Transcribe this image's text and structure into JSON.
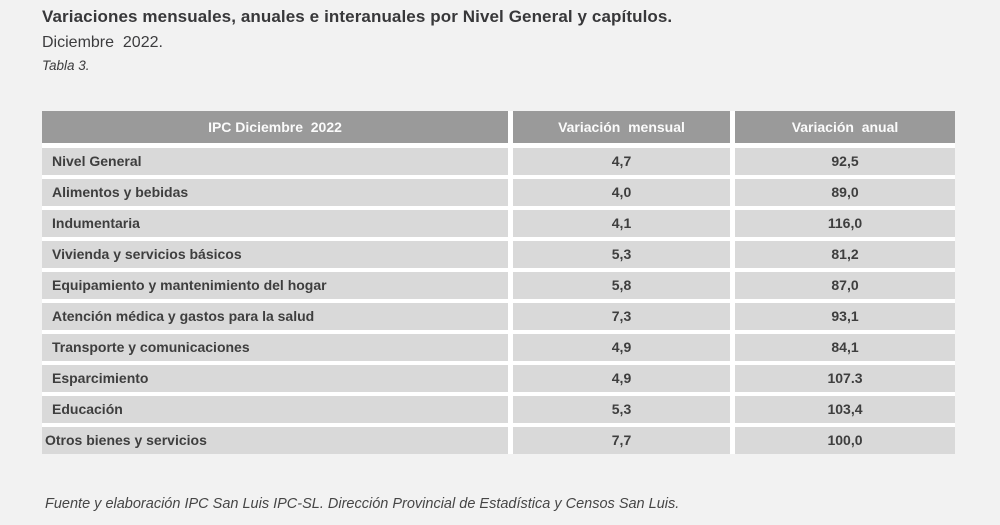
{
  "document": {
    "title": "Variaciones mensuales, anuales e interanuales por Nivel General y capítulos.",
    "subtitle": "Diciembre  2022.",
    "table_caption": "Tabla 3.",
    "source_note": "Fuente y elaboración IPC San Luis IPC-SL. Dirección Provincial de Estadística y Censos San Luis."
  },
  "table": {
    "column_headers": [
      "IPC Diciembre  2022",
      "Variación  mensual",
      "Variación  anual"
    ],
    "rows": [
      {
        "label": "Nivel General",
        "monthly": "4,7",
        "annual": "92,5"
      },
      {
        "label": "Alimentos y bebidas",
        "monthly": "4,0",
        "annual": "89,0"
      },
      {
        "label": "Indumentaria",
        "monthly": "4,1",
        "annual": "116,0"
      },
      {
        "label": "Vivienda y servicios básicos",
        "monthly": "5,3",
        "annual": "81,2"
      },
      {
        "label": "Equipamiento y mantenimiento del hogar",
        "monthly": "5,8",
        "annual": "87,0"
      },
      {
        "label": "Atención médica y gastos para la salud",
        "monthly": "7,3",
        "annual": "93,1"
      },
      {
        "label": "Transporte y comunicaciones",
        "monthly": "4,9",
        "annual": "84,1"
      },
      {
        "label": "Esparcimiento",
        "monthly": "4,9",
        "annual": "107.3"
      },
      {
        "label": "Educación",
        "monthly": "5,3",
        "annual": "103,4"
      },
      {
        "label": "Otros bienes y servicios",
        "monthly": "7,7",
        "annual": "100,0"
      }
    ]
  },
  "colors": {
    "page_background": "#f2f2f2",
    "header_background": "#9a9a9a",
    "header_text": "#fbfbfb",
    "row_background": "#d9d9d9",
    "cell_gap": "#ffffff",
    "body_text": "#3e3e3e"
  }
}
